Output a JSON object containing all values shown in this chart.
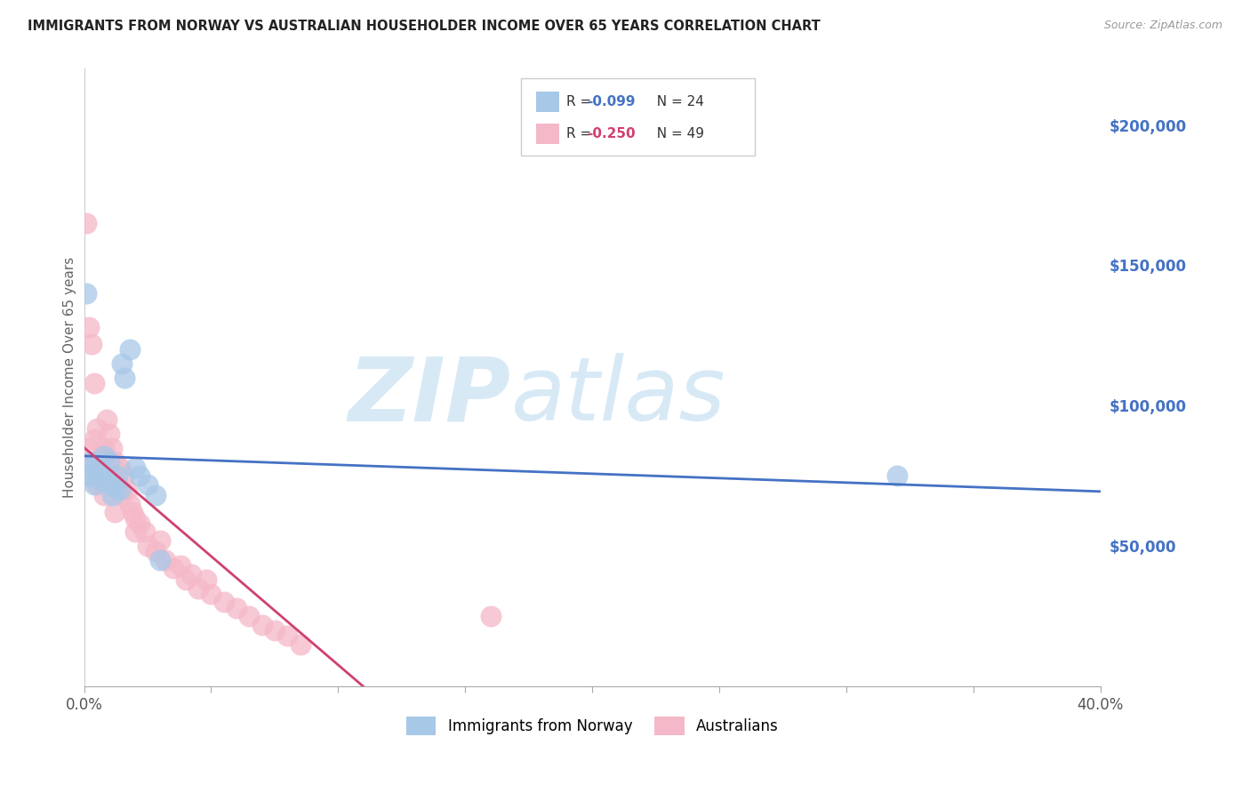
{
  "title": "IMMIGRANTS FROM NORWAY VS AUSTRALIAN HOUSEHOLDER INCOME OVER 65 YEARS CORRELATION CHART",
  "source": "Source: ZipAtlas.com",
  "ylabel": "Householder Income Over 65 years",
  "right_yticks": [
    "$200,000",
    "$150,000",
    "$100,000",
    "$50,000"
  ],
  "right_ytick_vals": [
    200000,
    150000,
    100000,
    50000
  ],
  "ylim": [
    0,
    220000
  ],
  "xlim": [
    0.0,
    0.4
  ],
  "legend1_r": "-0.099",
  "legend1_n": "24",
  "legend2_r": "-0.250",
  "legend2_n": "49",
  "legend_label1": "Immigrants from Norway",
  "legend_label2": "Australians",
  "color_blue": "#a8c8e8",
  "color_pink": "#f5b8c8",
  "trendline_blue": "#4472c4",
  "trendline_pink": "#d04070",
  "norway_x": [
    0.001,
    0.002,
    0.003,
    0.004,
    0.005,
    0.006,
    0.007,
    0.008,
    0.009,
    0.01,
    0.011,
    0.012,
    0.013,
    0.014,
    0.015,
    0.016,
    0.018,
    0.02,
    0.022,
    0.025,
    0.028,
    0.03,
    0.32,
    0.001
  ],
  "norway_y": [
    75000,
    78000,
    80000,
    72000,
    74000,
    79000,
    76000,
    82000,
    73000,
    80000,
    68000,
    71000,
    75000,
    70000,
    115000,
    110000,
    120000,
    78000,
    75000,
    72000,
    68000,
    45000,
    75000,
    140000
  ],
  "australia_x": [
    0.001,
    0.002,
    0.003,
    0.004,
    0.005,
    0.006,
    0.007,
    0.008,
    0.009,
    0.01,
    0.011,
    0.012,
    0.013,
    0.014,
    0.015,
    0.016,
    0.017,
    0.018,
    0.019,
    0.02,
    0.022,
    0.024,
    0.025,
    0.028,
    0.03,
    0.032,
    0.035,
    0.038,
    0.04,
    0.042,
    0.045,
    0.048,
    0.05,
    0.055,
    0.06,
    0.065,
    0.07,
    0.075,
    0.08,
    0.085,
    0.001,
    0.002,
    0.003,
    0.004,
    0.005,
    0.008,
    0.012,
    0.02,
    0.16
  ],
  "australia_y": [
    80000,
    85000,
    75000,
    88000,
    72000,
    78000,
    82000,
    68000,
    95000,
    90000,
    85000,
    80000,
    72000,
    78000,
    68000,
    75000,
    70000,
    65000,
    62000,
    60000,
    58000,
    55000,
    50000,
    48000,
    52000,
    45000,
    42000,
    43000,
    38000,
    40000,
    35000,
    38000,
    33000,
    30000,
    28000,
    25000,
    22000,
    20000,
    18000,
    15000,
    165000,
    128000,
    122000,
    108000,
    92000,
    85000,
    62000,
    55000,
    25000
  ],
  "xtick_positions": [
    0.0,
    0.05,
    0.1,
    0.15,
    0.2,
    0.25,
    0.3,
    0.35,
    0.4
  ],
  "watermark_zip": "ZIP",
  "watermark_atlas": "atlas",
  "background_color": "#ffffff",
  "grid_color": "#cccccc",
  "trend_split_pink": 0.12
}
